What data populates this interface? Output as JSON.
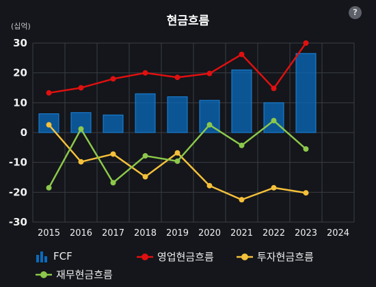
{
  "header": {
    "title": "현금흐름",
    "help_icon_label": "?",
    "unit_label": "(십억)"
  },
  "colors": {
    "fcf": "#0a6bbd",
    "operating": "#e01010",
    "investing": "#f5c03a",
    "financing": "#8cc84b",
    "grid": "#3a3d44"
  },
  "chart_data": {
    "type": "bar+line",
    "title": "현금흐름",
    "ylabel": "(십억)",
    "categories": [
      "2015",
      "2016",
      "2017",
      "2018",
      "2019",
      "2020",
      "2021",
      "2022",
      "2023",
      "2024"
    ],
    "ylim": [
      -30,
      30
    ],
    "yticks": [
      30,
      20,
      10,
      0,
      -10,
      -20,
      -30
    ],
    "grid": true,
    "legend_position": "bottom",
    "series": [
      {
        "name": "FCF",
        "kind": "bar",
        "color": "#0a6bbd",
        "values": [
          6.3,
          6.7,
          5.9,
          13.0,
          12.0,
          10.8,
          21.0,
          10.0,
          26.5,
          null
        ]
      },
      {
        "name": "영업현금흐름",
        "kind": "line",
        "color": "#e01010",
        "values": [
          13.3,
          15.0,
          18.0,
          20.0,
          18.5,
          19.8,
          26.2,
          14.8,
          30.0,
          null
        ]
      },
      {
        "name": "투자현금흐름",
        "kind": "line",
        "color": "#f5c03a",
        "values": [
          2.6,
          -9.8,
          -7.2,
          -14.8,
          -6.8,
          -17.8,
          -22.5,
          -18.5,
          -20.2,
          null
        ]
      },
      {
        "name": "재무현금흐름",
        "kind": "line",
        "color": "#8cc84b",
        "values": [
          -18.5,
          1.2,
          -16.8,
          -7.8,
          -9.6,
          2.6,
          -4.3,
          4.0,
          -5.5,
          null
        ]
      }
    ]
  },
  "legend": {
    "fcf": "FCF",
    "operating": "영업현금흐름",
    "investing": "투자현금흐름",
    "financing": "재무현금흐름"
  }
}
